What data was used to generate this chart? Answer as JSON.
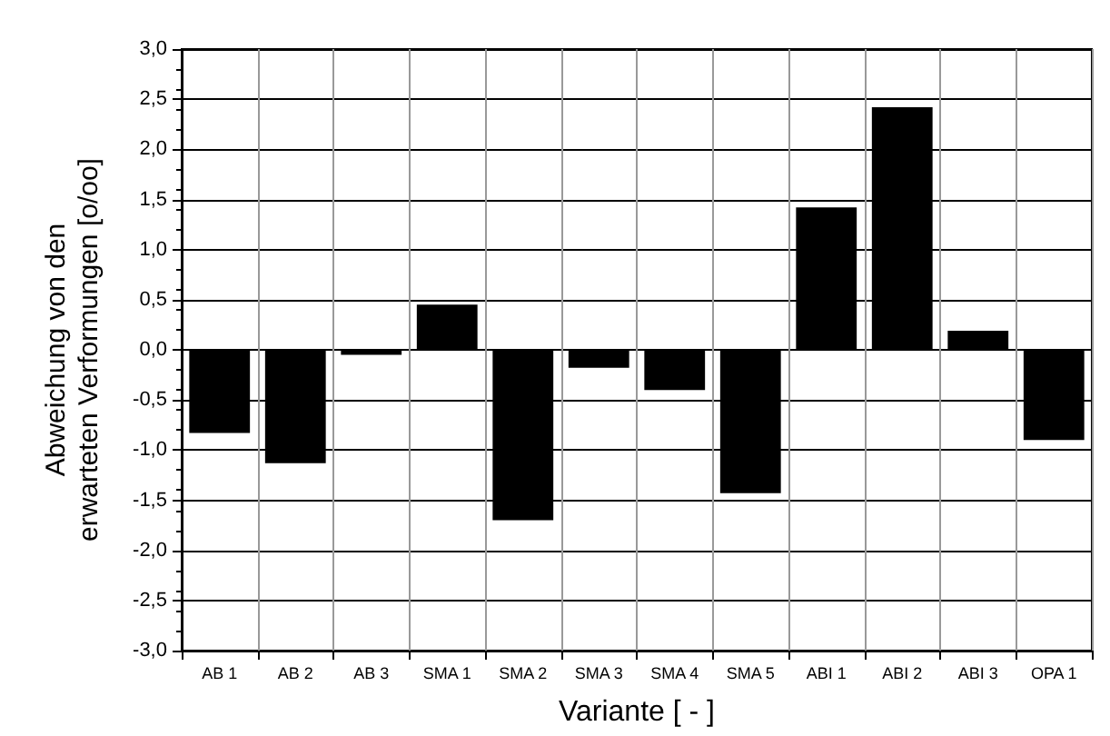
{
  "chart_data": {
    "type": "bar",
    "xlabel": "Variante [ - ]",
    "ylabel": "Abweichung von den\nerwarteten Verformungen [o/oo]",
    "categories": [
      "AB 1",
      "AB 2",
      "AB 3",
      "SMA 1",
      "SMA 2",
      "SMA 3",
      "SMA 4",
      "SMA 5",
      "ABI 1",
      "ABI 2",
      "ABI 3",
      "OPA 1"
    ],
    "values": [
      -0.83,
      -1.13,
      -0.05,
      0.45,
      -1.7,
      -0.18,
      -0.4,
      -1.43,
      1.42,
      2.42,
      0.19,
      -0.9
    ],
    "color": "#000000",
    "ylim": [
      -3,
      3
    ],
    "yticks": [
      {
        "value": -3,
        "label": "-3,0"
      },
      {
        "value": -2.5,
        "label": "-2,5"
      },
      {
        "value": -2,
        "label": "-2,0"
      },
      {
        "value": -1.5,
        "label": "-1,5"
      },
      {
        "value": -1,
        "label": "-1,0"
      },
      {
        "value": -0.5,
        "label": "-0,5"
      },
      {
        "value": 0,
        "label": "0,0"
      },
      {
        "value": 0.5,
        "label": "0,5"
      },
      {
        "value": 1,
        "label": "1,0"
      },
      {
        "value": 1.5,
        "label": "1,5"
      },
      {
        "value": 2,
        "label": "2,0"
      },
      {
        "value": 2.5,
        "label": "2,5"
      },
      {
        "value": 3,
        "label": "3,0"
      }
    ],
    "grid": true
  }
}
